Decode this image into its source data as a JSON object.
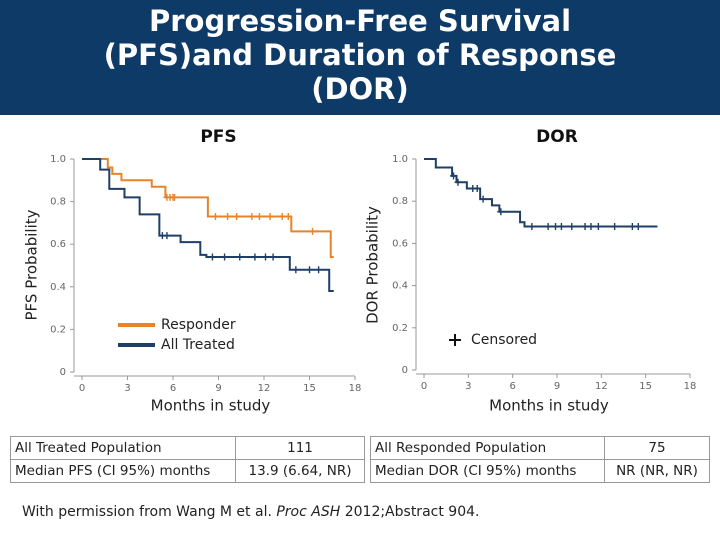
{
  "header": {
    "title": "Progression-Free Survival (PFS)and Duration of Response (DOR)"
  },
  "chart_data": [
    {
      "type": "step",
      "title": "PFS",
      "ylabel": "PFS Probability",
      "xlabel": "Months in study",
      "xlim": [
        0,
        18
      ],
      "ylim": [
        0,
        1
      ],
      "xticks": [
        0,
        3,
        6,
        9,
        12,
        15,
        18
      ],
      "yticks": [
        0,
        0.2,
        0.4,
        0.6,
        0.8,
        {
          "value": 1,
          "label": "1.0"
        }
      ],
      "legend": "lower left",
      "series": [
        {
          "name": "Responder",
          "color": "#e8832a",
          "x": [
            0,
            1.7,
            2.0,
            2.6,
            4.6,
            5.5,
            8.3,
            13.8,
            16.4,
            16.6
          ],
          "values": [
            1,
            0.96,
            0.93,
            0.9,
            0.87,
            0.82,
            0.73,
            0.66,
            0.54,
            0.54
          ],
          "censored_x": [
            5.6,
            5.8,
            6.0,
            6.1,
            8.8,
            9.6,
            10.2,
            11.2,
            11.7,
            12.4,
            13.2,
            13.6,
            15.2
          ],
          "censored_values": [
            0.82,
            0.82,
            0.82,
            0.82,
            0.73,
            0.73,
            0.73,
            0.73,
            0.73,
            0.73,
            0.73,
            0.73,
            0.66
          ]
        },
        {
          "name": "All Treated",
          "color": "#1f3f66",
          "x": [
            0,
            1.2,
            1.8,
            2.8,
            3.8,
            5.1,
            6.5,
            7.8,
            8.2,
            13.7,
            16.3,
            16.6
          ],
          "values": [
            1,
            0.95,
            0.86,
            0.82,
            0.74,
            0.64,
            0.61,
            0.55,
            0.54,
            0.48,
            0.38,
            0.38
          ],
          "censored_x": [
            5.3,
            5.6,
            8.6,
            9.4,
            10.4,
            11.4,
            12.1,
            12.6,
            14.1,
            15.0,
            15.6
          ],
          "censored_values": [
            0.64,
            0.64,
            0.54,
            0.54,
            0.54,
            0.54,
            0.54,
            0.54,
            0.48,
            0.48,
            0.48
          ]
        }
      ]
    },
    {
      "type": "step",
      "title": "DOR",
      "ylabel": "DOR Probability",
      "xlabel": "Months in study",
      "xlim": [
        0,
        18
      ],
      "ylim": [
        0,
        1
      ],
      "xticks": [
        0,
        3,
        6,
        9,
        12,
        15,
        18
      ],
      "yticks": [
        0,
        0.2,
        0.4,
        0.6,
        0.8,
        {
          "value": 1,
          "label": "1.0"
        }
      ],
      "censor_label": "Censored",
      "series": [
        {
          "color": "#1f3f66",
          "x": [
            0,
            0.8,
            1.9,
            2.2,
            2.9,
            3.8,
            4.6,
            5.1,
            6.5,
            6.8,
            15.8
          ],
          "values": [
            1,
            0.96,
            0.92,
            0.89,
            0.86,
            0.81,
            0.78,
            0.75,
            0.7,
            0.68,
            0.68
          ],
          "censored_x": [
            2.0,
            2.3,
            3.3,
            3.6,
            4.0,
            5.2,
            7.3,
            8.4,
            8.9,
            9.3,
            10.0,
            10.9,
            11.3,
            11.8,
            12.9,
            14.1,
            14.5
          ],
          "censored_values": [
            0.92,
            0.89,
            0.86,
            0.86,
            0.81,
            0.75,
            0.68,
            0.68,
            0.68,
            0.68,
            0.68,
            0.68,
            0.68,
            0.68,
            0.68,
            0.68,
            0.68
          ]
        }
      ]
    }
  ],
  "tables": [
    {
      "rows": [
        [
          "All Treated Population",
          "111"
        ],
        [
          "Median PFS (CI 95%) months",
          "13.9 (6.64, NR)"
        ]
      ]
    },
    {
      "rows": [
        [
          "All Responded Population",
          "75"
        ],
        [
          "Median DOR (CI 95%) months",
          "NR (NR, NR)"
        ]
      ]
    }
  ],
  "footnote": {
    "parts": [
      "With permission from Wang M et al. ",
      "Proc ASH",
      " 2012;Abstract 904."
    ]
  }
}
